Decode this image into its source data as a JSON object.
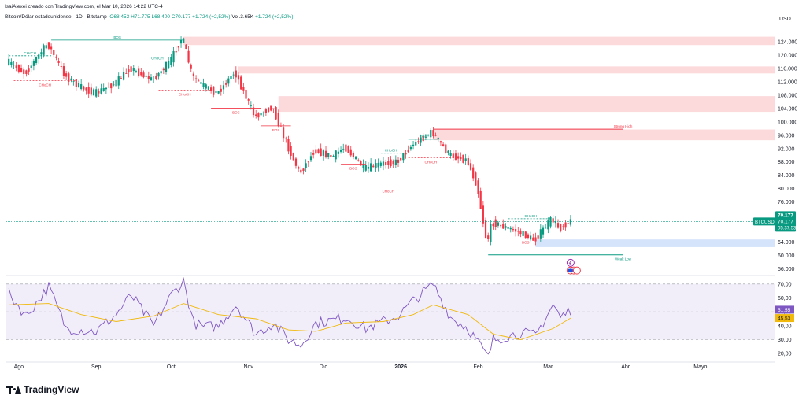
{
  "header": {
    "author_line": "IsaiAlexei creado con TradingView.com, el Mar 10, 2026 14:22 UTC-4",
    "symbol": "Bitcoin/Dólar estadounidense · 1D · Bitstamp",
    "ohlc": {
      "open": "O68.453",
      "high": "H71.775",
      "low": "L68.400",
      "close": "C70.177",
      "change": "+1.724 (+2,52%)"
    },
    "volume": "Vol.3.65K",
    "volume_change": "+1.724 (+2,52%)",
    "currency": "USD"
  },
  "colors": {
    "up": "#089981",
    "down": "#f23645",
    "rsi": "#7e57c2",
    "rsi_ma": "#f0b90b",
    "zone_supply": "#fcd9db",
    "zone_demand": "#d6e4fb"
  },
  "chart_data": [
    {
      "type": "candlestick",
      "name": "price",
      "ylim": [
        54000,
        128000
      ],
      "y_ticks": [
        124000,
        120000,
        116000,
        112000,
        108000,
        104000,
        100000,
        96000,
        92000,
        88000,
        84000,
        80000,
        76000,
        72000,
        68000,
        64000,
        60000,
        56000
      ],
      "y_tick_labels": [
        "124.000",
        "120.000",
        "116.000",
        "112.000",
        "108.000",
        "104.000",
        "100.000",
        "96.000",
        "92.000",
        "88.000",
        "84.000",
        "80.000",
        "76.000",
        "72.000",
        "68.000",
        "64.000",
        "60.000",
        "56.000"
      ],
      "x_labels": [
        {
          "date": "2025-08-01",
          "label": "Ago"
        },
        {
          "date": "2025-09-01",
          "label": "Sep"
        },
        {
          "date": "2025-10-01",
          "label": "Oct"
        },
        {
          "date": "2025-11-01",
          "label": "Nov"
        },
        {
          "date": "2025-12-01",
          "label": "Dic"
        },
        {
          "date": "2026-01-01",
          "label": "2026"
        },
        {
          "date": "2026-02-01",
          "label": "Feb"
        },
        {
          "date": "2026-03-01",
          "label": "Mar"
        },
        {
          "date": "2026-04-01",
          "label": "Abr"
        },
        {
          "date": "2026-05-01",
          "label": "Mayo"
        }
      ],
      "price_path": [
        [
          "2025-07-28",
          118000
        ],
        [
          "2025-08-04",
          114500
        ],
        [
          "2025-08-13",
          123500
        ],
        [
          "2025-08-20",
          113800
        ],
        [
          "2025-08-26",
          110500
        ],
        [
          "2025-09-01",
          108500
        ],
        [
          "2025-09-09",
          111500
        ],
        [
          "2025-09-15",
          116000
        ],
        [
          "2025-09-24",
          112500
        ],
        [
          "2025-10-01",
          118000
        ],
        [
          "2025-10-06",
          125500
        ],
        [
          "2025-10-10",
          113500
        ],
        [
          "2025-10-14",
          111000
        ],
        [
          "2025-10-20",
          108500
        ],
        [
          "2025-10-27",
          115000
        ],
        [
          "2025-11-04",
          101500
        ],
        [
          "2025-11-11",
          104500
        ],
        [
          "2025-11-17",
          93000
        ],
        [
          "2025-11-22",
          84500
        ],
        [
          "2025-11-28",
          91500
        ],
        [
          "2025-12-05",
          89500
        ],
        [
          "2025-12-10",
          92500
        ],
        [
          "2025-12-18",
          86000
        ],
        [
          "2025-12-25",
          87500
        ],
        [
          "2025-12-31",
          88000
        ],
        [
          "2026-01-06",
          93000
        ],
        [
          "2026-01-14",
          97000
        ],
        [
          "2026-01-21",
          90000
        ],
        [
          "2026-01-28",
          88500
        ],
        [
          "2026-02-01",
          81000
        ],
        [
          "2026-02-05",
          63500
        ],
        [
          "2026-02-07",
          70000
        ],
        [
          "2026-02-12",
          68500
        ],
        [
          "2026-02-18",
          67000
        ],
        [
          "2026-02-24",
          64500
        ],
        [
          "2026-03-03",
          71000
        ],
        [
          "2026-03-06",
          68000
        ],
        [
          "2026-03-10",
          70177
        ]
      ],
      "current_price": 70177,
      "current_price_label": "70.177",
      "price_tag": {
        "symbol": "BTCUSD",
        "price": "70.177",
        "countdown": "05:37:53"
      },
      "zones": [
        {
          "kind": "supply",
          "from": "2025-10-06",
          "to": "2026-05-31",
          "y1": 123000,
          "y2": 125500
        },
        {
          "kind": "supply",
          "from": "2025-10-28",
          "to": "2026-05-31",
          "y1": 114500,
          "y2": 116600
        },
        {
          "kind": "supply",
          "from": "2025-11-13",
          "to": "2026-05-31",
          "y1": 103000,
          "y2": 107700
        },
        {
          "kind": "supply",
          "from": "2026-01-14",
          "to": "2026-05-31",
          "y1": 94500,
          "y2": 97700
        },
        {
          "kind": "demand",
          "from": "2026-02-24",
          "to": "2026-05-31",
          "y1": 62500,
          "y2": 64800
        }
      ],
      "annotations": [
        {
          "text": "BOS",
          "color": "#089981",
          "x1": "2025-08-14",
          "x2": "2025-10-06",
          "y": 124500
        },
        {
          "text": "CHoCH",
          "color": "#089981",
          "x1": "2025-07-28",
          "x2": "2025-08-14",
          "y": 119800
        },
        {
          "text": "CHoCH",
          "color": "#f23645",
          "x1": "2025-07-30",
          "x2": "2025-08-24",
          "y": 112300
        },
        {
          "text": "CHoCH",
          "color": "#089981",
          "x1": "2025-09-18",
          "x2": "2025-10-03",
          "y": 118200
        },
        {
          "text": "CHoCH",
          "color": "#f23645",
          "x1": "2025-09-26",
          "x2": "2025-10-17",
          "y": 109500
        },
        {
          "text": "BOS",
          "color": "#f23645",
          "x1": "2025-10-17",
          "x2": "2025-11-06",
          "y": 104100
        },
        {
          "text": "BOS",
          "color": "#f23645",
          "x1": "2025-11-06",
          "x2": "2025-11-18",
          "y": 98800
        },
        {
          "text": "CHoCH",
          "color": "#f23645",
          "x1": "2025-11-21",
          "x2": "2026-02-01",
          "y": 80500
        },
        {
          "text": "BOS",
          "color": "#f23645",
          "x1": "2025-12-08",
          "x2": "2025-12-18",
          "y": 87300
        },
        {
          "text": "CHoCH",
          "color": "#089981",
          "x1": "2025-12-24",
          "x2": "2026-01-01",
          "y": 90600
        },
        {
          "text": "BOS",
          "color": "#089981",
          "x1": "2026-01-04",
          "x2": "2026-01-16",
          "y": 94800
        },
        {
          "text": "CHoCH",
          "color": "#f23645",
          "x1": "2026-01-04",
          "x2": "2026-01-22",
          "y": 89200
        },
        {
          "text": "CHoCH",
          "color": "#089981",
          "x1": "2026-02-13",
          "x2": "2026-03-03",
          "y": 71000
        },
        {
          "text": "BOS",
          "color": "#f23645",
          "x1": "2026-02-14",
          "x2": "2026-02-26",
          "y": 65200
        }
      ],
      "levels": [
        {
          "text": "Strong High",
          "color": "#f23645",
          "x1": "2026-01-14",
          "x2": "2026-03-31",
          "y": 97800
        },
        {
          "text": "Weak Low",
          "color": "#089981",
          "x1": "2026-02-05",
          "x2": "2026-03-31",
          "y": 60200
        }
      ]
    },
    {
      "type": "line",
      "name": "RSI",
      "ylim": [
        15,
        75
      ],
      "y_ticks": [
        70,
        60,
        50,
        40,
        30,
        20
      ],
      "y_tick_labels": [
        "70,00",
        "60,00",
        "50,00",
        "40,00",
        "30,00",
        "20,00"
      ],
      "band": [
        30,
        70
      ],
      "mid": 50,
      "rsi_path": [
        [
          "2025-07-28",
          63
        ],
        [
          "2025-08-04",
          47
        ],
        [
          "2025-08-13",
          68
        ],
        [
          "2025-08-20",
          38
        ],
        [
          "2025-08-26",
          37
        ],
        [
          "2025-09-01",
          36
        ],
        [
          "2025-09-09",
          48
        ],
        [
          "2025-09-15",
          62
        ],
        [
          "2025-09-24",
          40
        ],
        [
          "2025-10-01",
          62
        ],
        [
          "2025-10-06",
          72
        ],
        [
          "2025-10-10",
          42
        ],
        [
          "2025-10-14",
          39
        ],
        [
          "2025-10-20",
          40
        ],
        [
          "2025-10-27",
          55
        ],
        [
          "2025-11-04",
          34
        ],
        [
          "2025-11-11",
          42
        ],
        [
          "2025-11-17",
          30
        ],
        [
          "2025-11-22",
          26
        ],
        [
          "2025-11-28",
          42
        ],
        [
          "2025-12-05",
          44
        ],
        [
          "2025-12-10",
          46
        ],
        [
          "2025-12-18",
          38
        ],
        [
          "2025-12-25",
          43
        ],
        [
          "2025-12-31",
          47
        ],
        [
          "2026-01-06",
          58
        ],
        [
          "2026-01-14",
          70
        ],
        [
          "2026-01-21",
          46
        ],
        [
          "2026-01-28",
          38
        ],
        [
          "2026-02-01",
          28
        ],
        [
          "2026-02-05",
          17
        ],
        [
          "2026-02-07",
          30
        ],
        [
          "2026-02-12",
          32
        ],
        [
          "2026-02-18",
          35
        ],
        [
          "2026-02-24",
          33
        ],
        [
          "2026-03-03",
          55
        ],
        [
          "2026-03-06",
          46
        ],
        [
          "2026-03-10",
          51.55
        ]
      ],
      "rsi_ma_path": [
        [
          "2025-07-28",
          55
        ],
        [
          "2025-08-13",
          56
        ],
        [
          "2025-08-26",
          48
        ],
        [
          "2025-09-09",
          43
        ],
        [
          "2025-09-24",
          47
        ],
        [
          "2025-10-06",
          56
        ],
        [
          "2025-10-20",
          48
        ],
        [
          "2025-11-04",
          45
        ],
        [
          "2025-11-17",
          37
        ],
        [
          "2025-11-28",
          36
        ],
        [
          "2025-12-10",
          42
        ],
        [
          "2025-12-25",
          43
        ],
        [
          "2026-01-06",
          48
        ],
        [
          "2026-01-14",
          55
        ],
        [
          "2026-01-28",
          48
        ],
        [
          "2026-02-07",
          34
        ],
        [
          "2026-02-18",
          30
        ],
        [
          "2026-03-03",
          38
        ],
        [
          "2026-03-10",
          45.53
        ]
      ],
      "rsi_label": "51,55",
      "ma_label": "45,53"
    }
  ]
}
